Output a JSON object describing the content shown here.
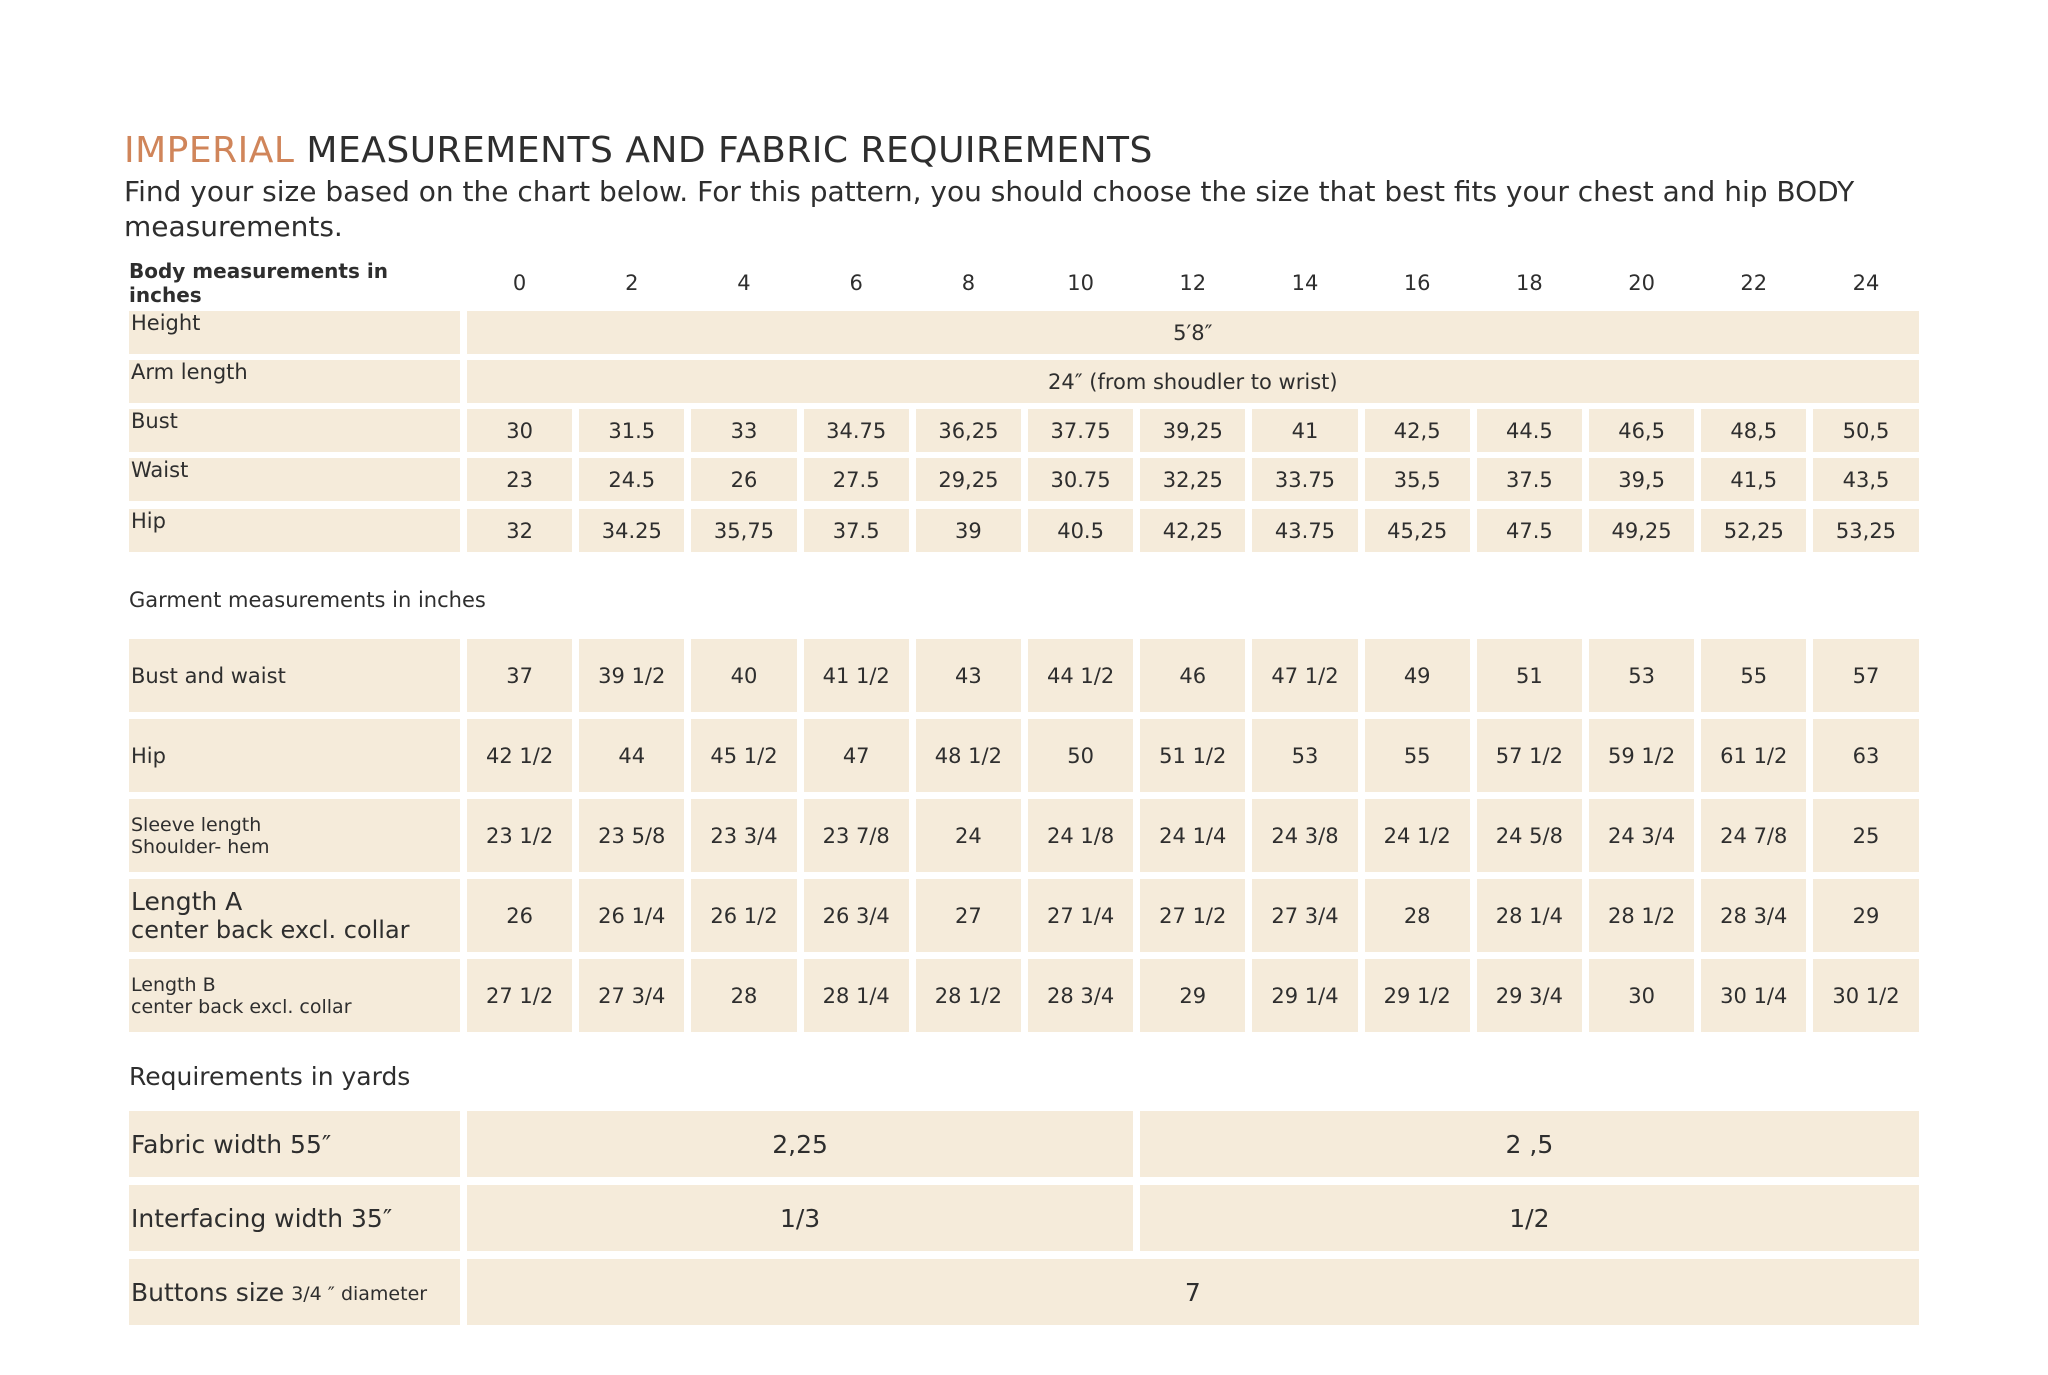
{
  "title": {
    "accent": "IMPERIAL",
    "rest": "MEASUREMENTS AND FABRIC REQUIREMENTS"
  },
  "intro": "Find your size based on the chart below. For this pattern, you should choose the size that best fits your chest and hip BODY measurements.",
  "body_table": {
    "header": "Body measurements in inches",
    "sizes": [
      "0",
      "2",
      "4",
      "6",
      "8",
      "10",
      "12",
      "14",
      "16",
      "18",
      "20",
      "22",
      "24"
    ],
    "rows": [
      {
        "label": "Height",
        "value": "5′8″"
      },
      {
        "label": "Arm length",
        "value": "24″ (from shoudler to wrist)"
      },
      {
        "label": "Bust",
        "values": [
          "30",
          "31.5",
          "33",
          "34.75",
          "36,25",
          "37.75",
          "39,25",
          "41",
          "42,5",
          "44.5",
          "46,5",
          "48,5",
          "50,5"
        ]
      },
      {
        "label": "Waist",
        "values": [
          "23",
          "24.5",
          "26",
          "27.5",
          "29,25",
          "30.75",
          "32,25",
          "33.75",
          "35,5",
          "37.5",
          "39,5",
          "41,5",
          "43,5"
        ]
      },
      {
        "label": "Hip",
        "values": [
          "32",
          "34.25",
          "35,75",
          "37.5",
          "39",
          "40.5",
          "42,25",
          "43.75",
          "45,25",
          "47.5",
          "49,25",
          "52,25",
          "53,25"
        ]
      }
    ]
  },
  "garment_table": {
    "heading": "Garment measurements in inches",
    "rows": [
      {
        "label": [
          "Bust and waist"
        ],
        "values": [
          "37",
          "39 1/2",
          "40",
          "41 1/2",
          "43",
          "44 1/2",
          "46",
          "47 1/2",
          "49",
          "51",
          "53",
          "55",
          "57"
        ]
      },
      {
        "label": [
          "Hip"
        ],
        "values": [
          "42 1/2",
          "44",
          "45 1/2",
          "47",
          "48 1/2",
          "50",
          "51 1/2",
          "53",
          "55",
          "57 1/2",
          "59 1/2",
          "61 1/2",
          "63"
        ]
      },
      {
        "label": [
          "Sleeve length",
          "Shoulder- hem"
        ],
        "values": [
          "23 1/2",
          "23 5/8",
          "23 3/4",
          "23 7/8",
          "24",
          "24 1/8",
          "24 1/4",
          "24 3/8",
          "24 1/2",
          "24 5/8",
          "24 3/4",
          "24 7/8",
          "25"
        ]
      },
      {
        "label": [
          "Length A",
          "center back excl. collar"
        ],
        "values": [
          "26",
          "26 1/4",
          "26 1/2",
          "26 3/4",
          "27",
          "27 1/4",
          "27 1/2",
          "27 3/4",
          "28",
          "28 1/4",
          "28 1/2",
          "28 3/4",
          "29"
        ]
      },
      {
        "label": [
          "Length B",
          "center back excl. collar"
        ],
        "values": [
          "27 1/2",
          "27 3/4",
          "28",
          "28 1/4",
          "28 1/2",
          "28 3/4",
          "29",
          "29 1/4",
          "29 1/2",
          "29 3/4",
          "30",
          "30 1/4",
          "30 1/2"
        ]
      }
    ]
  },
  "requirements": {
    "heading": "Requirements in yards",
    "rows": [
      {
        "label": "Fabric width 55″",
        "values": [
          "2,25",
          "2 ,5"
        ]
      },
      {
        "label": "Interfacing width 35″",
        "values": [
          "1/3",
          "1/2"
        ]
      },
      {
        "label": "Buttons size",
        "label_note": "3/4 ″ diameter",
        "value": "7"
      }
    ]
  }
}
